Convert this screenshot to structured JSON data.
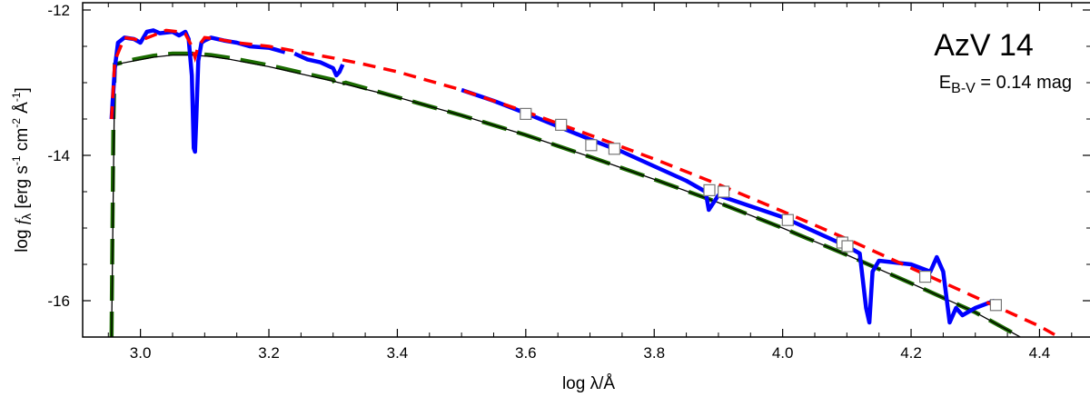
{
  "chart_data": {
    "type": "line",
    "title": "AzV 14",
    "annotation": {
      "main": "E",
      "sub": "B-V",
      "rest": " =  0.14  mag"
    },
    "xlabel": "log λ/Å",
    "ylabel": "log f_λ [erg s⁻¹ cm⁻² Å⁻¹]",
    "ylabel_parts": {
      "log": "log ",
      "f": "f",
      "lambda": "λ",
      "b1": " [erg s",
      "e1": "-1",
      "b2": " cm",
      "e2": "-2",
      "b3": " Å",
      "e3": "-1",
      "b4": "]"
    },
    "xlim": [
      2.91,
      4.48
    ],
    "ylim": [
      -16.5,
      -11.9
    ],
    "xticks": [
      3.0,
      3.2,
      3.4,
      3.6,
      3.8,
      4.0,
      4.2,
      4.4
    ],
    "xtick_labels": [
      "3.0",
      "3.2",
      "3.4",
      "3.6",
      "3.8",
      "4.0",
      "4.2",
      "4.4"
    ],
    "yticks": [
      -12,
      -14,
      -16
    ],
    "ytick_labels": [
      "-12",
      "-14",
      "-16"
    ],
    "series": [
      {
        "kind": "model-reddened",
        "color": "#ff0000",
        "style": "dashed",
        "x": [
          2.955,
          2.96,
          2.975,
          2.99,
          3.0,
          3.02,
          3.04,
          3.06,
          3.07,
          3.08,
          3.085,
          3.09,
          3.1,
          3.12,
          3.15,
          3.2,
          3.25,
          3.3,
          3.35,
          3.4,
          3.5,
          3.6,
          3.7,
          3.8,
          3.9,
          4.0,
          4.1,
          4.2,
          4.3,
          4.4,
          4.43
        ],
        "y": [
          -13.5,
          -12.7,
          -12.38,
          -12.4,
          -12.42,
          -12.35,
          -12.28,
          -12.3,
          -12.33,
          -12.5,
          -12.65,
          -12.5,
          -12.38,
          -12.4,
          -12.45,
          -12.5,
          -12.58,
          -12.66,
          -12.75,
          -12.85,
          -13.1,
          -13.4,
          -13.72,
          -14.05,
          -14.4,
          -14.77,
          -15.15,
          -15.55,
          -15.95,
          -16.35,
          -16.5
        ]
      },
      {
        "kind": "observed",
        "color": "#0000ff",
        "style": "solid",
        "segments": [
          {
            "x": [
              2.955,
              2.96,
              2.965,
              2.975,
              2.99,
              3.0,
              3.01,
              3.02,
              3.03,
              3.05,
              3.06,
              3.07,
              3.075,
              3.08,
              3.083,
              3.085,
              3.087,
              3.09,
              3.095,
              3.1,
              3.11,
              3.13,
              3.15,
              3.17,
              3.2,
              3.225
            ],
            "y": [
              -13.5,
              -12.8,
              -12.45,
              -12.38,
              -12.4,
              -12.45,
              -12.3,
              -12.28,
              -12.32,
              -12.3,
              -12.35,
              -12.3,
              -12.4,
              -12.9,
              -13.9,
              -13.95,
              -13.5,
              -12.7,
              -12.45,
              -12.42,
              -12.38,
              -12.42,
              -12.45,
              -12.5,
              -12.52,
              -12.58
            ]
          },
          {
            "x": [
              3.24,
              3.26,
              3.28,
              3.3,
              3.305,
              3.31,
              3.315
            ],
            "y": [
              -12.6,
              -12.68,
              -12.72,
              -12.8,
              -12.9,
              -12.85,
              -12.75
            ]
          },
          {
            "x": [
              3.5,
              3.55,
              3.6,
              3.65,
              3.7,
              3.75,
              3.8,
              3.85,
              3.88,
              3.885,
              3.9,
              3.95,
              4.0,
              4.05,
              4.1,
              4.12,
              4.13,
              4.135,
              4.14,
              4.15,
              4.2,
              4.23,
              4.24,
              4.25,
              4.26,
              4.27,
              4.28,
              4.3,
              4.33
            ],
            "y": [
              -13.1,
              -13.25,
              -13.42,
              -13.6,
              -13.78,
              -13.95,
              -14.15,
              -14.35,
              -14.5,
              -14.75,
              -14.55,
              -14.7,
              -14.85,
              -15.05,
              -15.25,
              -15.35,
              -16.1,
              -16.3,
              -15.6,
              -15.45,
              -15.5,
              -15.6,
              -15.4,
              -15.6,
              -16.3,
              -16.1,
              -16.2,
              -16.1,
              -16.0
            ]
          }
        ]
      },
      {
        "kind": "model-unreddened-continuum",
        "color": "#000000",
        "style": "solid",
        "x": [
          2.955,
          2.96,
          2.99,
          3.02,
          3.05,
          3.08,
          3.11,
          3.14,
          3.2,
          3.3,
          3.4,
          3.5,
          3.6,
          3.7,
          3.8,
          3.9,
          4.0,
          4.1,
          4.2,
          4.3,
          4.37
        ],
        "y": [
          -16.5,
          -12.75,
          -12.7,
          -12.65,
          -12.62,
          -12.62,
          -12.64,
          -12.68,
          -12.78,
          -12.98,
          -13.2,
          -13.45,
          -13.72,
          -14.02,
          -14.33,
          -14.65,
          -15.0,
          -15.37,
          -15.76,
          -16.16,
          -16.5
        ]
      },
      {
        "kind": "model-unreddened",
        "color": "#1a6b00",
        "style": "long-dashed",
        "x": [
          2.955,
          2.958,
          2.96,
          2.99,
          3.02,
          3.05,
          3.08,
          3.11,
          3.14,
          3.2,
          3.3,
          3.305,
          3.31,
          3.32,
          3.4,
          3.5,
          3.6,
          3.7,
          3.8,
          3.9,
          4.0,
          4.1,
          4.2,
          4.3,
          4.37
        ],
        "y": [
          -16.5,
          -13.5,
          -12.75,
          -12.68,
          -12.63,
          -12.6,
          -12.6,
          -12.62,
          -12.66,
          -12.76,
          -12.96,
          -13.05,
          -13.02,
          -13.0,
          -13.2,
          -13.45,
          -13.72,
          -14.02,
          -14.33,
          -14.65,
          -15.0,
          -15.37,
          -15.76,
          -16.16,
          -16.5
        ]
      }
    ],
    "photometry": {
      "marker": "open-square",
      "x": [
        3.6,
        3.655,
        3.702,
        3.738,
        3.886,
        3.908,
        4.008,
        4.093,
        4.101,
        4.222,
        4.332
      ],
      "y": [
        -13.43,
        -13.58,
        -13.86,
        -13.91,
        -14.48,
        -14.5,
        -14.89,
        -15.2,
        -15.25,
        -15.67,
        -16.06
      ]
    }
  }
}
